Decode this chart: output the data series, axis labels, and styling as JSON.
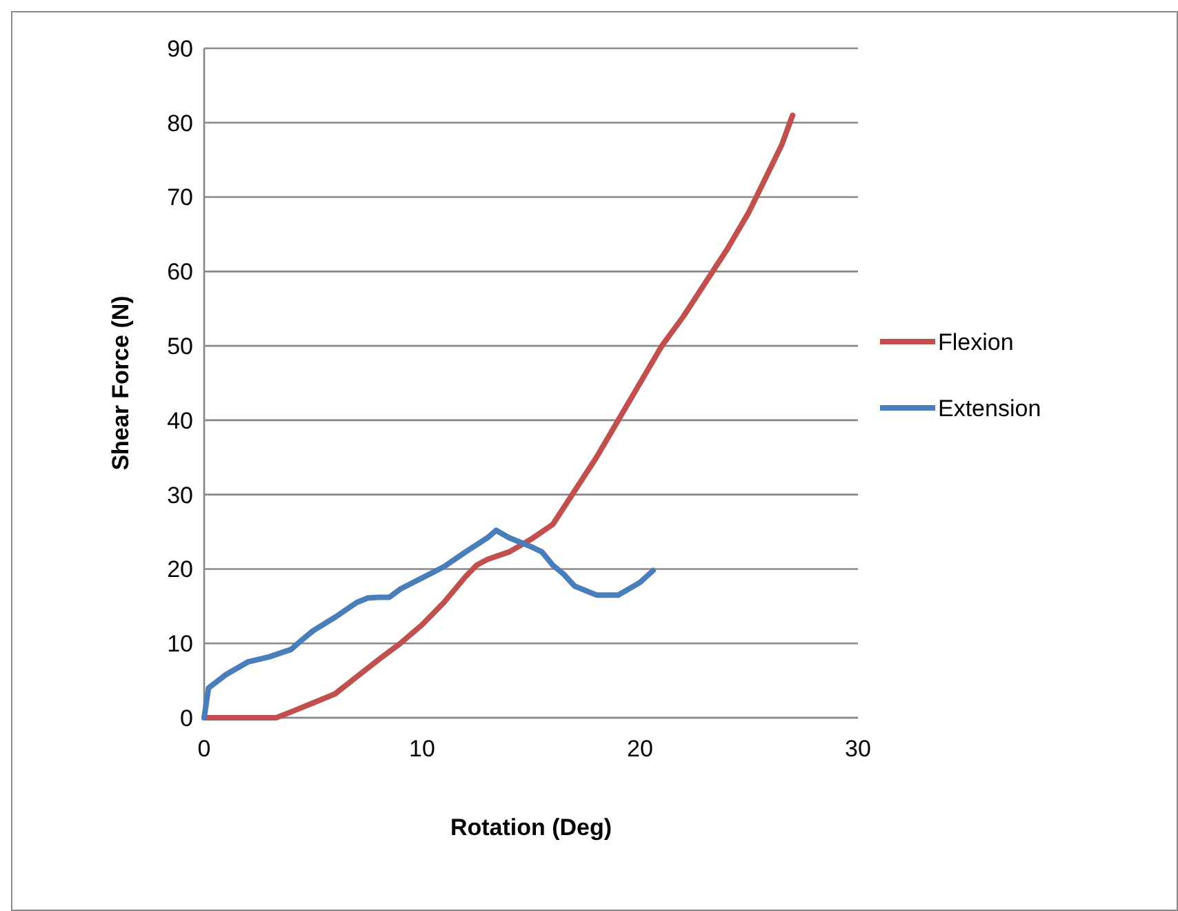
{
  "chart_data": {
    "type": "line",
    "xlabel": "Rotation (Deg)",
    "ylabel": "Shear Force (N)",
    "xlim": [
      0,
      30
    ],
    "xticks": [
      0,
      10,
      20,
      30
    ],
    "ylim": [
      0,
      90
    ],
    "yticks": [
      0,
      10,
      20,
      30,
      40,
      50,
      60,
      70,
      80,
      90
    ],
    "grid": "y",
    "legend": "right",
    "marker": "none",
    "line_style": "solid",
    "series": [
      {
        "name": "Flexion",
        "color": "#c0504d",
        "x": [
          0,
          2,
          3.3,
          4,
          5,
          6,
          7,
          8,
          9,
          10,
          11,
          12,
          12.5,
          13,
          14,
          15,
          16,
          17,
          18,
          19,
          20,
          21,
          22,
          23,
          24,
          25,
          26,
          26.5,
          27
        ],
        "values": [
          0,
          0,
          0,
          0.8,
          2,
          3.2,
          5.5,
          7.8,
          10,
          12.5,
          15.5,
          19,
          20.5,
          21.3,
          22.3,
          24,
          26,
          30.5,
          35,
          40,
          45,
          50,
          54,
          58.5,
          63,
          68,
          74,
          77,
          81
        ]
      },
      {
        "name": "Extension",
        "color": "#4a7ebb",
        "x": [
          0,
          0.2,
          1,
          2,
          3,
          4,
          4.5,
          5,
          6,
          7,
          7.5,
          8,
          8.5,
          9,
          10,
          11,
          12,
          13,
          13.4,
          14,
          15,
          15.5,
          16,
          16.5,
          17,
          18,
          19,
          20,
          20.6
        ],
        "values": [
          0,
          4,
          5.8,
          7.5,
          8.2,
          9.2,
          10.5,
          11.7,
          13.5,
          15.5,
          16.1,
          16.2,
          16.2,
          17.3,
          18.8,
          20.3,
          22.3,
          24.2,
          25.2,
          24.2,
          23,
          22.3,
          20.5,
          19.3,
          17.7,
          16.5,
          16.5,
          18.2,
          19.8
        ]
      }
    ]
  }
}
